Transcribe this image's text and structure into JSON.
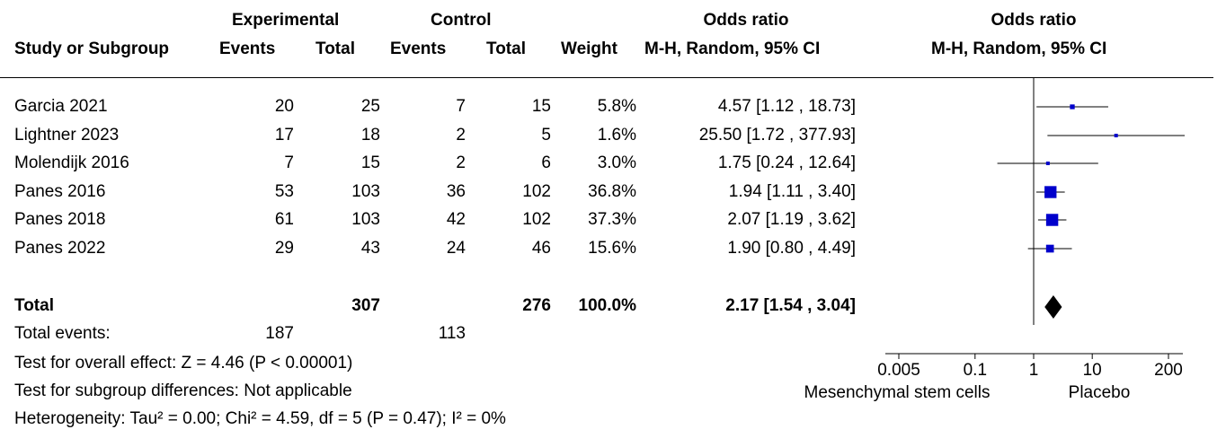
{
  "header": {
    "group1": "Experimental",
    "group2": "Control",
    "odds_ratio_title": "Odds ratio",
    "plot_title": "Odds ratio",
    "col_study": "Study or Subgroup",
    "col_events1": "Events",
    "col_total1": "Total",
    "col_events2": "Events",
    "col_total2": "Total",
    "col_weight": "Weight",
    "col_ci": "M-H, Random, 95% CI",
    "plot_ci": "M-H, Random, 95% CI"
  },
  "studies": [
    {
      "name": "Garcia 2021",
      "e1": "20",
      "t1": "25",
      "e2": "7",
      "t2": "15",
      "weight": "5.8%",
      "ci": "4.57 [1.12 , 18.73]"
    },
    {
      "name": "Lightner 2023",
      "e1": "17",
      "t1": "18",
      "e2": "2",
      "t2": "5",
      "weight": "1.6%",
      "ci": "25.50 [1.72 , 377.93]"
    },
    {
      "name": "Molendijk 2016",
      "e1": "7",
      "t1": "15",
      "e2": "2",
      "t2": "6",
      "weight": "3.0%",
      "ci": "1.75 [0.24 , 12.64]"
    },
    {
      "name": "Panes 2016",
      "e1": "53",
      "t1": "103",
      "e2": "36",
      "t2": "102",
      "weight": "36.8%",
      "ci": "1.94 [1.11 , 3.40]"
    },
    {
      "name": "Panes 2018",
      "e1": "61",
      "t1": "103",
      "e2": "42",
      "t2": "102",
      "weight": "37.3%",
      "ci": "2.07 [1.19 , 3.62]"
    },
    {
      "name": "Panes 2022",
      "e1": "29",
      "t1": "43",
      "e2": "24",
      "t2": "46",
      "weight": "15.6%",
      "ci": "1.90 [0.80 , 4.49]"
    }
  ],
  "total": {
    "label": "Total",
    "t1": "307",
    "t2": "276",
    "weight": "100.0%",
    "ci": "2.17 [1.54 , 3.04]"
  },
  "total_events": {
    "label": "Total events:",
    "e1": "187",
    "e2": "113"
  },
  "footer": {
    "overall_effect": "Test for overall effect: Z = 4.46 (P < 0.00001)",
    "subgroup": "Test for subgroup differences: Not applicable",
    "heterogeneity": "Heterogeneity: Tau² = 0.00; Chi² = 4.59, df = 5 (P = 0.47); I² = 0%"
  },
  "colors": {
    "marker": "#0000cc",
    "diamond": "#000000",
    "line": "#000000"
  },
  "chart_data": {
    "type": "scatter",
    "scale": "log",
    "xlim": [
      0.005,
      200
    ],
    "tick_labels": [
      "0.005",
      "0.1",
      "1",
      "10",
      "200"
    ],
    "ticks": [
      0.005,
      0.1,
      1,
      10,
      200
    ],
    "left_label": "Mesenchymal stem cells",
    "right_label": "Placebo",
    "studies": [
      {
        "name": "Garcia 2021",
        "or": 4.57,
        "lo": 1.12,
        "hi": 18.73,
        "weight": 5.8
      },
      {
        "name": "Lightner 2023",
        "or": 25.5,
        "lo": 1.72,
        "hi": 377.93,
        "weight": 1.6
      },
      {
        "name": "Molendijk 2016",
        "or": 1.75,
        "lo": 0.24,
        "hi": 12.64,
        "weight": 3.0
      },
      {
        "name": "Panes 2016",
        "or": 1.94,
        "lo": 1.11,
        "hi": 3.4,
        "weight": 36.8
      },
      {
        "name": "Panes 2018",
        "or": 2.07,
        "lo": 1.19,
        "hi": 3.62,
        "weight": 37.3
      },
      {
        "name": "Panes 2022",
        "or": 1.9,
        "lo": 0.8,
        "hi": 4.49,
        "weight": 15.6
      }
    ],
    "pooled": {
      "or": 2.17,
      "lo": 1.54,
      "hi": 3.04
    }
  }
}
